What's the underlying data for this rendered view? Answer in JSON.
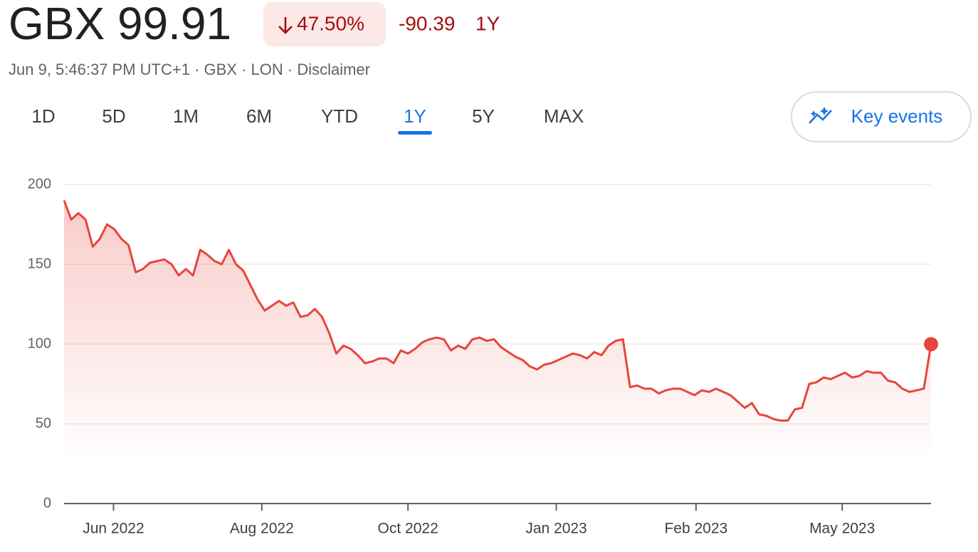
{
  "header": {
    "title": "GBX 99.91",
    "change_percent": "47.50%",
    "change": "-90.39",
    "period": "1Y",
    "subtitle": "Jun 9, 5:46:37 PM UTC+1 · GBX · LON · Disclaimer"
  },
  "range_tabs": {
    "items": [
      "1D",
      "5D",
      "1M",
      "6M",
      "YTD",
      "1Y",
      "5Y",
      "MAX"
    ],
    "selected": "1Y"
  },
  "key_events": "Key events",
  "chart_data": {
    "type": "line",
    "color": "#e8453c",
    "grid": true,
    "values": [
      190,
      178,
      182,
      178,
      161,
      166,
      175,
      172,
      166,
      162,
      145,
      147,
      151,
      152,
      153,
      150,
      143,
      147,
      143,
      159,
      156,
      152,
      150,
      159,
      150,
      146,
      137,
      128,
      121,
      124,
      127,
      124,
      126,
      117,
      118,
      122,
      117,
      107,
      94,
      99,
      97,
      93,
      88,
      89,
      91,
      91,
      88,
      96,
      94,
      97,
      101,
      103,
      104,
      103,
      96,
      99,
      97,
      103,
      104,
      102,
      103,
      98,
      95,
      92,
      90,
      86,
      84,
      87,
      88,
      90,
      92,
      94,
      93,
      91,
      95,
      93,
      99,
      102,
      103,
      73,
      74,
      72,
      72,
      69,
      71,
      72,
      72,
      70,
      68,
      71,
      70,
      72,
      70,
      68,
      64,
      60,
      63,
      56,
      55,
      53,
      52,
      52,
      59,
      60,
      75,
      76,
      79,
      78,
      80,
      82,
      79,
      80,
      83,
      82,
      82,
      77,
      76,
      72,
      70,
      71,
      72,
      99.91
    ],
    "xlim": [
      0,
      121
    ],
    "xticks": [
      {
        "value": 6.9,
        "label": "Jun 2022"
      },
      {
        "value": 27.6,
        "label": "Aug 2022"
      },
      {
        "value": 48,
        "label": "Oct 2022"
      },
      {
        "value": 68.7,
        "label": "Jan 2023"
      },
      {
        "value": 88.2,
        "label": "Feb 2023"
      },
      {
        "value": 108.6,
        "label": "May 2023"
      }
    ],
    "ylim": [
      0,
      200
    ],
    "yticks": [
      0,
      50,
      100,
      150,
      200
    ]
  }
}
